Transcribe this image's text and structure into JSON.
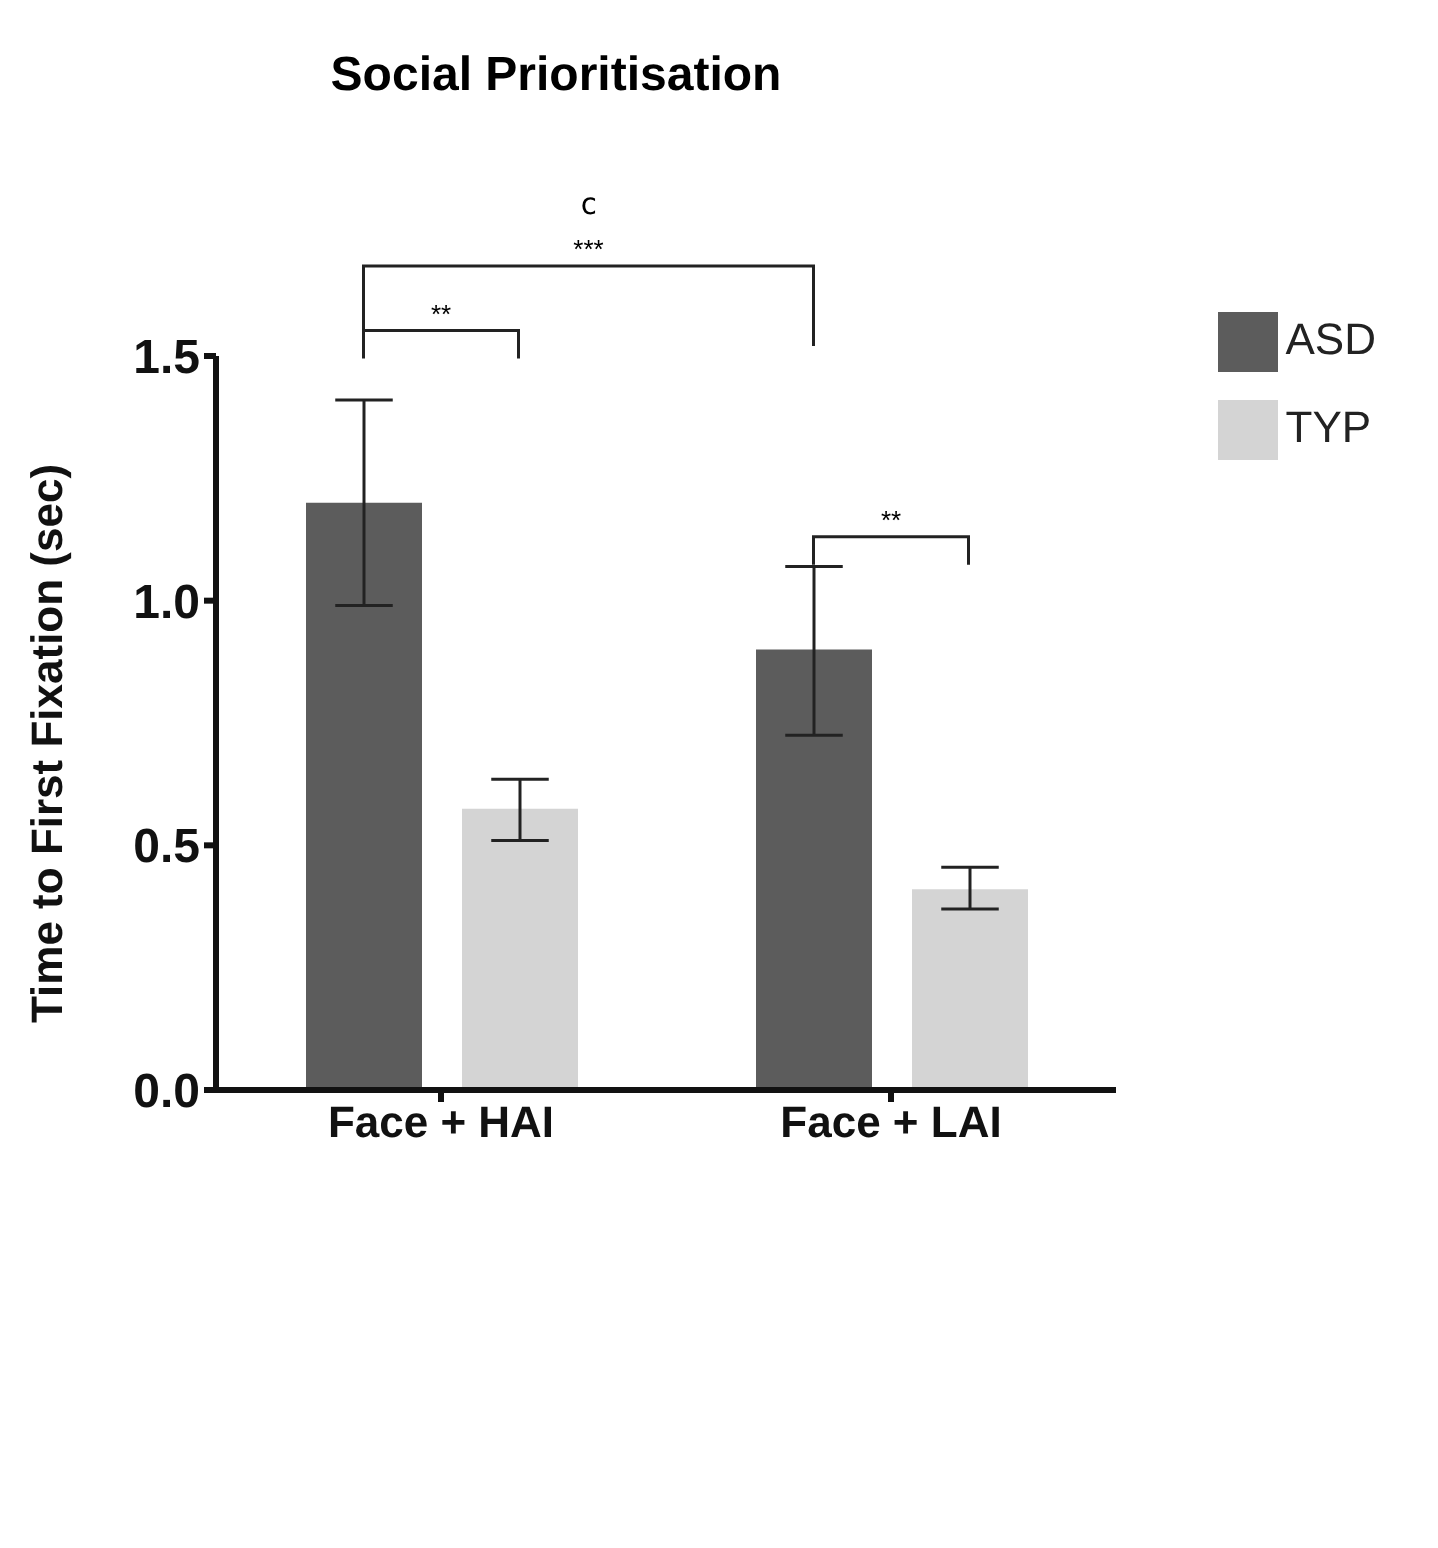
{
  "chart_data": {
    "type": "bar",
    "title": "Social Prioritisation",
    "ylabel": "Time to First Fixation (sec)",
    "categories": [
      "Face + HAI",
      "Face + LAI"
    ],
    "series": [
      {
        "name": "ASD",
        "color": "#5c5c5c",
        "values": [
          1.2,
          0.9
        ],
        "errors": [
          [
            0.99,
            1.41
          ],
          [
            0.725,
            1.07
          ]
        ]
      },
      {
        "name": "TYP",
        "color": "#d4d4d4",
        "values": [
          0.575,
          0.41
        ],
        "errors": [
          [
            0.51,
            0.635
          ],
          [
            0.37,
            0.455
          ]
        ]
      }
    ],
    "ylim": [
      0,
      1.5
    ],
    "yticks": [
      {
        "value": 0,
        "label": "0.0"
      },
      {
        "value": 0.5,
        "label": "0.5"
      },
      {
        "value": 1,
        "label": "1.0"
      },
      {
        "value": 1.5,
        "label": "1.5"
      }
    ],
    "legend": "top right",
    "grid": false,
    "annotations": [
      "c",
      "***",
      "**",
      "**"
    ]
  }
}
